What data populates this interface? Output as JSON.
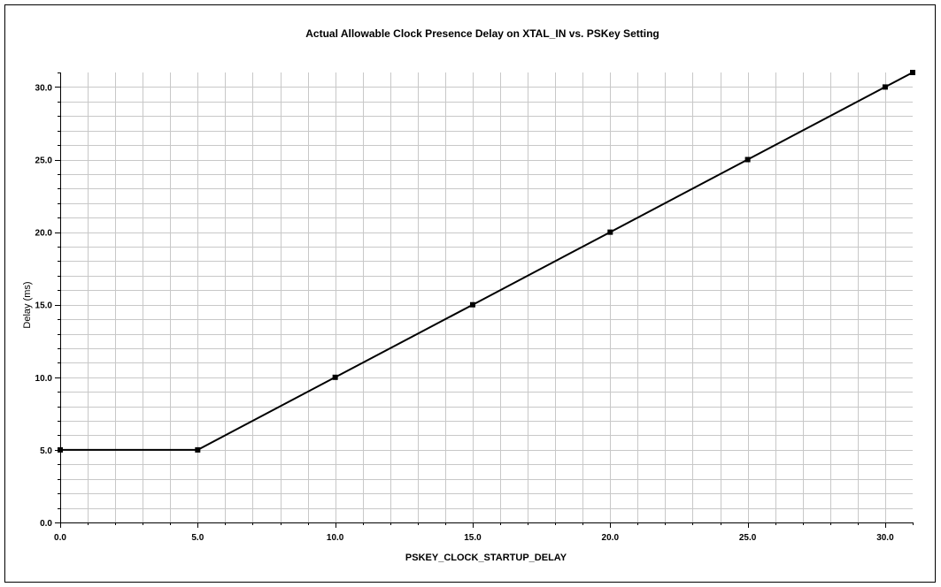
{
  "chart_data": {
    "type": "line",
    "title": "Actual Allowable Clock Presence Delay on XTAL_IN vs. PSKey Setting",
    "xlabel": "PSKEY_CLOCK_STARTUP_DELAY",
    "ylabel": "Delay (ms)",
    "xlim": [
      0,
      31
    ],
    "ylim": [
      0,
      31
    ],
    "x_ticks": [
      {
        "value": 0,
        "label": "0.0"
      },
      {
        "value": 5,
        "label": "5.0"
      },
      {
        "value": 10,
        "label": "10.0"
      },
      {
        "value": 15,
        "label": "15.0"
      },
      {
        "value": 20,
        "label": "20.0"
      },
      {
        "value": 25,
        "label": "25.0"
      },
      {
        "value": 30,
        "label": "30.0"
      }
    ],
    "y_ticks": [
      {
        "value": 0,
        "label": "0.0"
      },
      {
        "value": 5,
        "label": "5.0"
      },
      {
        "value": 10,
        "label": "10.0"
      },
      {
        "value": 15,
        "label": "15.0"
      },
      {
        "value": 20,
        "label": "20.0"
      },
      {
        "value": 25,
        "label": "25.0"
      },
      {
        "value": 30,
        "label": "30.0"
      }
    ],
    "x_minor_step": 1,
    "y_minor_step": 1,
    "grid": true,
    "legend": "none",
    "series": [
      {
        "x": [
          0,
          5,
          10,
          15,
          20,
          25,
          30,
          31
        ],
        "y": [
          5,
          5,
          10,
          15,
          20,
          25,
          30,
          31
        ],
        "color": "#000000",
        "marker": "square"
      }
    ],
    "colors": {
      "grid": "#c8c8c8",
      "axis": "#000000",
      "frame": "#000000"
    }
  }
}
